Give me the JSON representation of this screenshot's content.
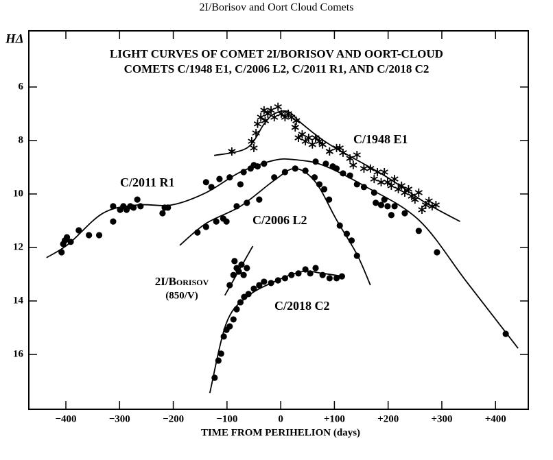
{
  "page_header": "2I/Borisov and Oort Cloud Comets",
  "chart_data": {
    "type": "scatter",
    "title": [
      "LIGHT CURVES OF COMET 2I/BORISOV AND OORT-CLOUD",
      "COMETS C/1948 E1, C/2006 L2, C/2011 R1, AND C/2018 C2"
    ],
    "x_label": "TIME FROM PERIHELION (days)",
    "y_label": "HΔ",
    "xlim": [
      -469,
      461
    ],
    "ylim": [
      3.9,
      18.05
    ],
    "y_inverted": true,
    "xticks": [
      {
        "value": -400,
        "label": "−400"
      },
      {
        "value": -300,
        "label": "−300"
      },
      {
        "value": -200,
        "label": "−200"
      },
      {
        "value": -100,
        "label": "−100"
      },
      0,
      {
        "value": 100,
        "label": "+100"
      },
      {
        "value": 200,
        "label": "+200"
      },
      {
        "value": 300,
        "label": "+300"
      },
      {
        "value": 400,
        "label": "+400"
      }
    ],
    "yticks": [
      6,
      8,
      10,
      12,
      14,
      16
    ],
    "color": "#000000",
    "series": [
      {
        "name": "C/1948 E1",
        "marker": "asterisk",
        "x": [
          -91,
          -50,
          -54,
          -46,
          -43,
          -37,
          -31,
          -29,
          -24,
          -18,
          -12,
          -5,
          1,
          8,
          14,
          20,
          27,
          29,
          33,
          40,
          46,
          52,
          59,
          65,
          72,
          78,
          91,
          104,
          110,
          116,
          129,
          135,
          142,
          155,
          167,
          174,
          180,
          187,
          193,
          199,
          206,
          212,
          219,
          225,
          231,
          238,
          244,
          250,
          257,
          263,
          270,
          276,
          282,
          289
        ],
        "values": [
          8.41,
          8.28,
          8.03,
          7.72,
          7.38,
          7.13,
          6.87,
          7.26,
          7.0,
          6.87,
          7.13,
          6.74,
          7.0,
          7.13,
          7.0,
          7.13,
          7.51,
          7.26,
          7.9,
          7.77,
          8.03,
          7.9,
          8.15,
          7.9,
          8.03,
          8.15,
          8.41,
          8.28,
          8.28,
          8.46,
          8.67,
          8.92,
          8.54,
          9.05,
          9.05,
          9.44,
          9.18,
          9.56,
          9.18,
          9.56,
          9.69,
          9.44,
          9.82,
          9.69,
          9.95,
          9.82,
          10.08,
          10.21,
          9.95,
          10.59,
          10.41,
          10.26,
          10.46,
          10.41
        ],
        "fit": {
          "x": [
            -124,
            -63,
            -31,
            -12,
            14,
            40,
            91,
            193,
            270,
            334
          ],
          "values": [
            8.56,
            8.28,
            7.38,
            7.0,
            6.92,
            7.38,
            8.15,
            9.31,
            10.33,
            11.03
          ]
        }
      },
      {
        "name": "C/2011 R1",
        "marker": "dot",
        "x": [
          -408,
          -405,
          -402,
          -398,
          -391,
          -376,
          -357,
          -338,
          -312,
          -312,
          -299,
          -293,
          -287,
          -280,
          -274,
          -267,
          -261,
          -220,
          -216,
          -210,
          -139,
          -129,
          -114,
          -95,
          -75,
          -69,
          -56,
          -50,
          -43,
          -31,
          65,
          84,
          97,
          104,
          116,
          129,
          142,
          155,
          174,
          177,
          187,
          193,
          199,
          206,
          212,
          231,
          257,
          291,
          419
        ],
        "values": [
          12.18,
          11.87,
          11.74,
          11.62,
          11.79,
          11.36,
          11.54,
          11.54,
          11.03,
          10.46,
          10.59,
          10.46,
          10.59,
          10.46,
          10.51,
          10.21,
          10.46,
          10.72,
          10.51,
          10.51,
          9.56,
          9.74,
          9.44,
          9.38,
          9.64,
          9.18,
          9.05,
          8.92,
          8.97,
          8.87,
          8.79,
          8.87,
          8.97,
          9.05,
          9.23,
          9.31,
          9.64,
          9.74,
          9.95,
          10.33,
          10.41,
          10.21,
          10.46,
          10.79,
          10.46,
          10.72,
          11.38,
          12.18,
          15.23
        ],
        "fit": {
          "x": [
            -436,
            -395,
            -331,
            -267,
            -203,
            -139,
            -75,
            -12,
            27,
            78,
            155,
            257,
            346,
            442
          ],
          "values": [
            12.38,
            11.87,
            10.72,
            10.41,
            10.41,
            9.95,
            9.18,
            8.74,
            8.72,
            8.92,
            9.69,
            10.97,
            13.28,
            15.77
          ]
        }
      },
      {
        "name": "C/2006 L2",
        "marker": "dot",
        "x": [
          -155,
          -139,
          -120,
          -107,
          -101,
          -82,
          -63,
          -40,
          -12,
          8,
          27,
          46,
          63,
          72,
          81,
          90,
          110,
          123,
          132,
          142
        ],
        "values": [
          11.44,
          11.23,
          11.03,
          10.92,
          11.03,
          10.46,
          10.33,
          10.21,
          9.38,
          9.18,
          9.05,
          9.13,
          9.38,
          9.64,
          9.82,
          10.21,
          11.18,
          11.49,
          11.74,
          12.31
        ],
        "fit": {
          "x": [
            -188,
            -139,
            -75,
            -12,
            27,
            65,
            104,
            142,
            167
          ],
          "values": [
            11.92,
            11.1,
            10.46,
            9.49,
            9.05,
            9.56,
            10.97,
            12.26,
            13.41
          ]
        }
      },
      {
        "name": "2I/Borisov",
        "note": "(850/V)",
        "marker": "dot",
        "x": [
          -95,
          -88,
          -86,
          -82,
          -78,
          -73,
          -69,
          -63
        ],
        "values": [
          13.41,
          13.03,
          12.51,
          12.77,
          12.9,
          12.64,
          13.03,
          12.77
        ],
        "fit": {
          "x": [
            -104,
            -52
          ],
          "values": [
            13.79,
            11.95
          ]
        }
      },
      {
        "name": "C/2018 C2",
        "marker": "dot",
        "x": [
          -123,
          -116,
          -111,
          -106,
          -101,
          -95,
          -88,
          -82,
          -75,
          -68,
          -60,
          -50,
          -40,
          -31,
          -18,
          -5,
          8,
          20,
          33,
          46,
          55,
          65,
          78,
          91,
          104,
          114
        ],
        "values": [
          16.87,
          16.23,
          15.97,
          15.33,
          15.08,
          14.95,
          14.69,
          14.31,
          14.05,
          13.85,
          13.74,
          13.54,
          13.41,
          13.28,
          13.33,
          13.23,
          13.15,
          13.03,
          12.97,
          12.82,
          12.97,
          12.77,
          13.03,
          13.15,
          13.15,
          13.08
        ],
        "fit": {
          "x": [
            -132,
            -101,
            -63,
            -12,
            40,
            78,
            116
          ],
          "values": [
            17.44,
            14.82,
            13.85,
            13.28,
            12.9,
            12.97,
            13.08
          ]
        }
      }
    ]
  }
}
